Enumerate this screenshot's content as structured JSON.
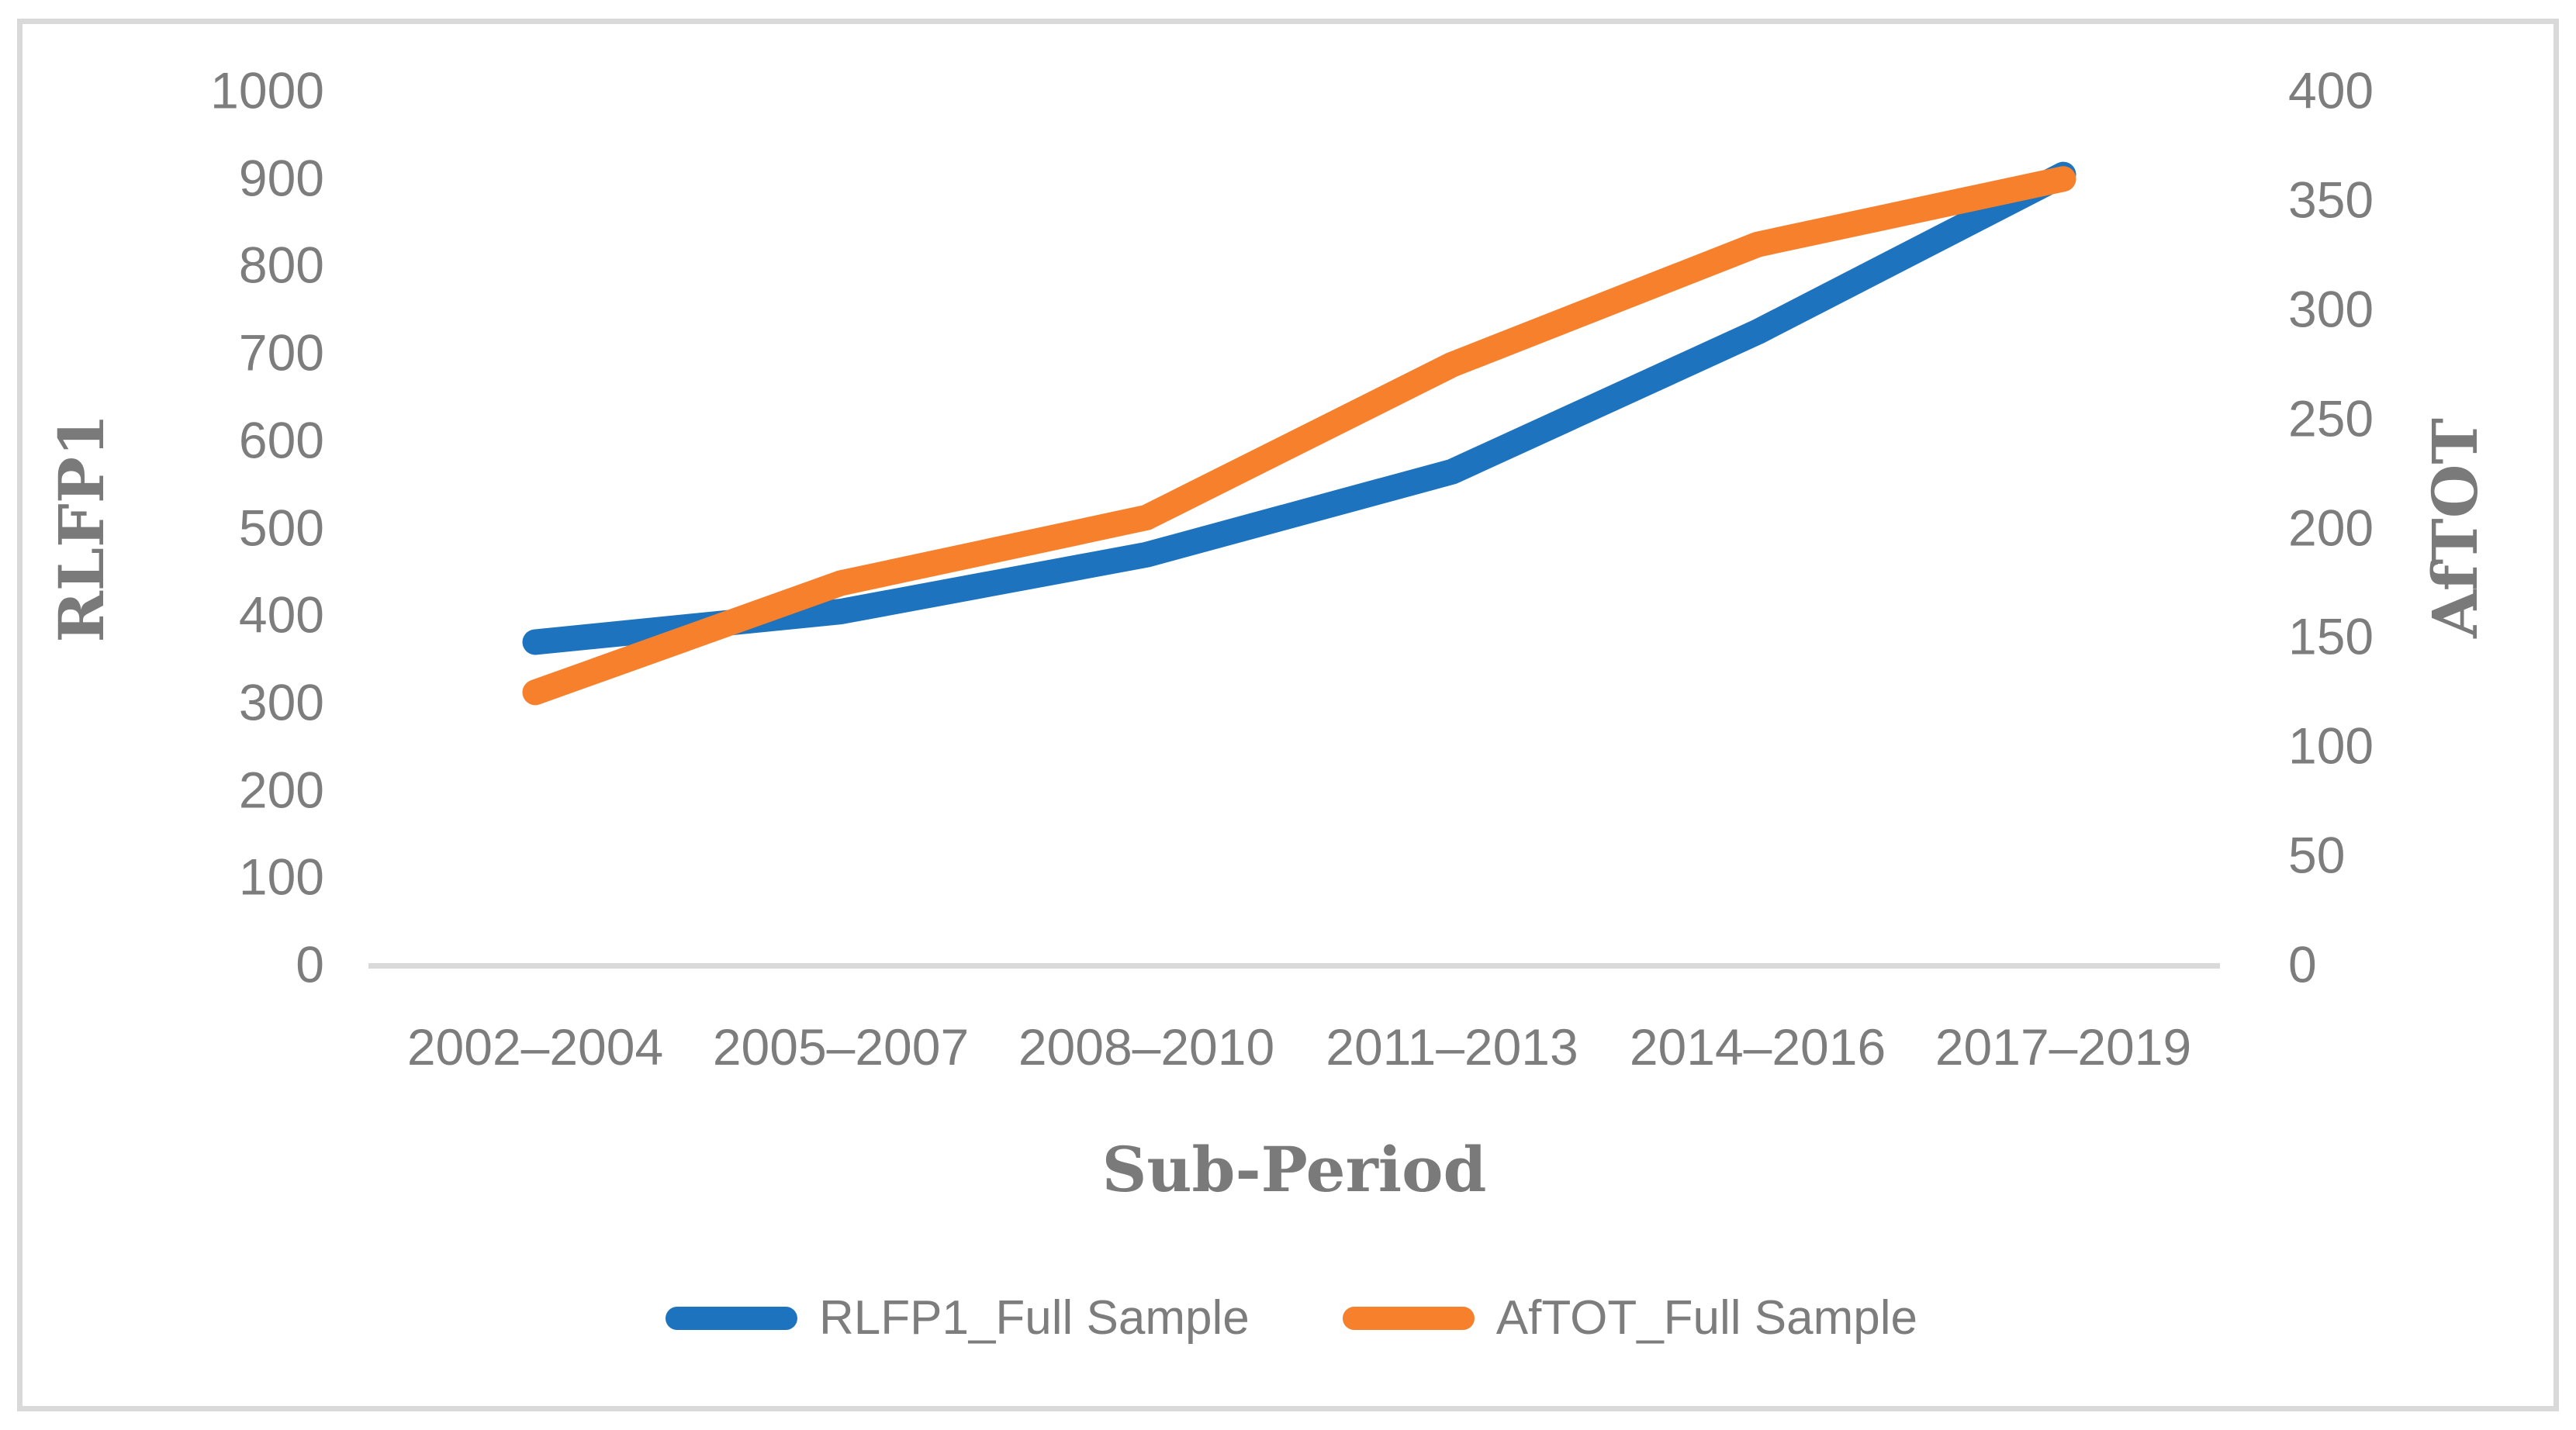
{
  "styles": {
    "background": "#FFFFFF",
    "frame_border_color": "#D9D9D9",
    "axis_line_color": "#D9D9D9",
    "tick_text_color": "#7D7D7D",
    "title_text_color": "#7A7A7A",
    "series_blue": "#1E73BE",
    "series_orange": "#F6802B"
  },
  "chart_data": {
    "type": "line",
    "title": "",
    "categories": [
      "2002–2004",
      "2005–2007",
      "2008–2010",
      "2011–2013",
      "2014–2016",
      "2017–2019"
    ],
    "series": [
      {
        "name": "RLFP1_Full Sample",
        "axis": "left",
        "color": "#1E73BE",
        "values": [
          370,
          405,
          470,
          565,
          725,
          905
        ]
      },
      {
        "name": "AfTOT_Full Sample",
        "axis": "right",
        "color": "#F6802B",
        "values": [
          125,
          175,
          205,
          275,
          330,
          360
        ]
      }
    ],
    "left_axis": {
      "title": "RLFP1",
      "min": 0,
      "max": 1000,
      "step": 100,
      "tick_labels": [
        "0",
        "100",
        "200",
        "300",
        "400",
        "500",
        "600",
        "700",
        "800",
        "900",
        "1000"
      ]
    },
    "right_axis": {
      "title": "AfTOT",
      "min": 0,
      "max": 400,
      "step": 50,
      "tick_labels": [
        "0",
        "50",
        "100",
        "150",
        "200",
        "250",
        "300",
        "350",
        "400"
      ]
    },
    "xlabel": "Sub-Period",
    "grid": "none",
    "legend_position": "bottom",
    "legend": [
      {
        "label": "RLFP1_Full Sample",
        "color": "#1E73BE"
      },
      {
        "label": "AfTOT_Full Sample",
        "color": "#F6802B"
      }
    ]
  }
}
